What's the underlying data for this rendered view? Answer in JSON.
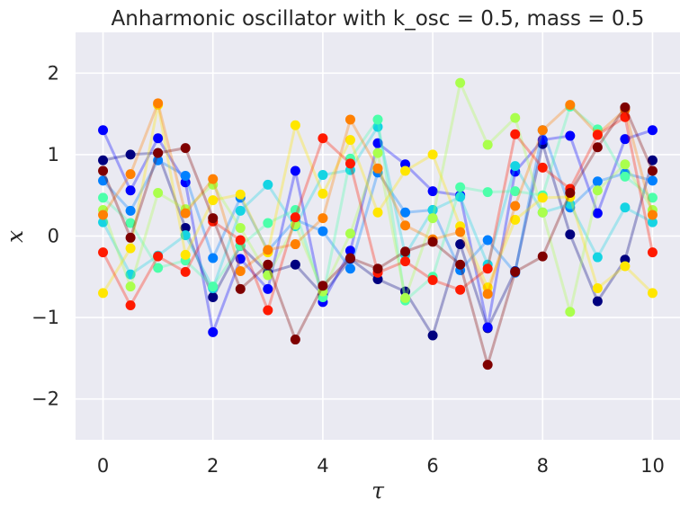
{
  "chart_data": {
    "type": "line",
    "title": "Anharmonic oscillator with k_osc = 0.5, mass = 0.5",
    "xlabel": "τ",
    "ylabel": "x",
    "xlim": [
      -0.5,
      10.5
    ],
    "ylim": [
      -2.5,
      2.5
    ],
    "xticks": [
      0,
      2,
      4,
      6,
      8,
      10
    ],
    "xtick_labels": [
      "0",
      "2",
      "4",
      "6",
      "8",
      "10"
    ],
    "yticks": [
      -2,
      -1,
      0,
      1,
      2
    ],
    "ytick_labels": [
      "−2",
      "−1",
      "0",
      "1",
      "2"
    ],
    "grid": true,
    "background": "#EAEAF2",
    "x": [
      0,
      0.5,
      1,
      1.5,
      2,
      2.5,
      3,
      3.5,
      4,
      4.5,
      5,
      5.5,
      6,
      6.5,
      7,
      7.5,
      8,
      8.5,
      9,
      9.5,
      10
    ],
    "series": [
      {
        "color": "#00007F",
        "values": [
          0.93,
          1.0,
          1.02,
          0.1,
          -0.75,
          -0.12,
          -0.45,
          -0.35,
          -0.72,
          -0.28,
          -0.53,
          -0.68,
          -1.22,
          -0.1,
          -1.13,
          -0.43,
          1.13,
          0.02,
          -0.8,
          -0.29,
          0.93
        ]
      },
      {
        "color": "#0000FF",
        "values": [
          1.3,
          0.56,
          1.2,
          0.66,
          -1.18,
          -0.28,
          -0.65,
          0.8,
          -0.81,
          -0.18,
          1.14,
          0.88,
          0.55,
          0.5,
          -1.12,
          0.79,
          1.18,
          1.23,
          0.28,
          1.19,
          1.3
        ]
      },
      {
        "color": "#0080FF",
        "values": [
          0.68,
          0.31,
          0.93,
          0.74,
          -0.27,
          0.47,
          -0.18,
          0.2,
          0.06,
          -0.4,
          0.78,
          0.29,
          0.32,
          -0.42,
          -0.05,
          -0.45,
          1.3,
          0.35,
          0.67,
          0.77,
          0.68
        ]
      },
      {
        "color": "#15D4E3",
        "values": [
          0.17,
          -0.47,
          -0.24,
          0.01,
          -0.64,
          0.31,
          0.63,
          0.12,
          0.75,
          0.81,
          1.34,
          -0.23,
          0.32,
          0.48,
          -0.35,
          0.86,
          0.29,
          0.39,
          -0.26,
          0.35,
          0.17
        ]
      },
      {
        "color": "#4CFFAA",
        "values": [
          0.47,
          0.16,
          -0.39,
          -0.3,
          -0.62,
          -0.12,
          0.16,
          0.32,
          -0.75,
          0.95,
          1.43,
          -0.79,
          -0.5,
          0.6,
          0.54,
          0.55,
          0.5,
          1.59,
          1.31,
          0.73,
          0.47
        ]
      },
      {
        "color": "#AAFF4D",
        "values": [
          0.32,
          -0.62,
          0.53,
          0.33,
          0.63,
          0.1,
          -0.48,
          0.14,
          -0.68,
          0.03,
          1.02,
          -0.76,
          0.22,
          1.88,
          1.12,
          1.45,
          0.29,
          -0.93,
          0.56,
          0.88,
          0.32
        ]
      },
      {
        "color": "#FFE600",
        "values": [
          -0.7,
          -0.15,
          1.61,
          -0.23,
          0.44,
          0.51,
          -0.2,
          1.36,
          0.52,
          1.18,
          0.29,
          0.8,
          1.0,
          0.12,
          -0.63,
          0.2,
          0.47,
          0.48,
          -0.64,
          -0.37,
          -0.7
        ]
      },
      {
        "color": "#FF8000",
        "values": [
          0.26,
          0.76,
          1.63,
          0.28,
          0.7,
          -0.43,
          -0.17,
          -0.1,
          0.22,
          1.43,
          0.83,
          0.13,
          -0.04,
          0.05,
          -0.71,
          0.37,
          1.3,
          1.61,
          1.25,
          1.55,
          0.26
        ]
      },
      {
        "color": "#FF1A00",
        "values": [
          -0.2,
          -0.85,
          -0.25,
          -0.44,
          0.18,
          -0.05,
          -0.91,
          0.23,
          1.2,
          0.89,
          -0.45,
          -0.31,
          -0.54,
          -0.66,
          -0.4,
          1.25,
          0.84,
          0.58,
          1.24,
          1.46,
          -0.2
        ]
      },
      {
        "color": "#7F0000",
        "values": [
          0.8,
          -0.02,
          1.02,
          1.08,
          0.22,
          -0.65,
          -0.35,
          -1.27,
          -0.61,
          -0.27,
          -0.4,
          -0.19,
          -0.07,
          -0.35,
          -1.58,
          -0.44,
          -0.25,
          0.53,
          1.09,
          1.58,
          0.8
        ]
      }
    ]
  }
}
